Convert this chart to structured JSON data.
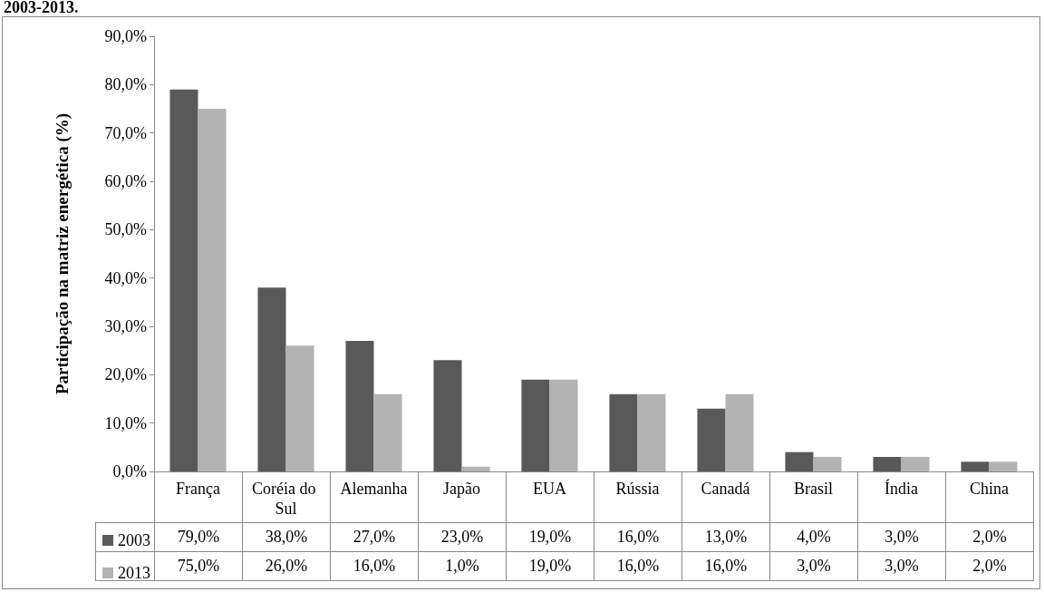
{
  "chart_data": {
    "type": "bar",
    "ylabel": "Participação na matriz energética (%)",
    "annotations": [
      "2003-2013."
    ],
    "categories": [
      "França",
      "Coréia do Sul",
      "Alemanha",
      "Japão",
      "EUA",
      "Rússia",
      "Canadá",
      "Brasil",
      "Índia",
      "China"
    ],
    "series": [
      {
        "name": "2003",
        "color": "#595959",
        "values": [
          79,
          38,
          27,
          23,
          19,
          16,
          13,
          4,
          3,
          2
        ],
        "value_labels": [
          "79,0%",
          "38,0%",
          "27,0%",
          "23,0%",
          "19,0%",
          "16,0%",
          "13,0%",
          "4,0%",
          "3,0%",
          "2,0%"
        ]
      },
      {
        "name": "2013",
        "color": "#b3b3b3",
        "values": [
          75,
          26,
          16,
          1,
          19,
          16,
          16,
          3,
          3,
          2
        ],
        "value_labels": [
          "75,0%",
          "26,0%",
          "16,0%",
          "1,0%",
          "19,0%",
          "16,0%",
          "16,0%",
          "3,0%",
          "3,0%",
          "2,0%"
        ]
      }
    ],
    "ylim": [
      0,
      90
    ],
    "yticks": [
      {
        "value": 0,
        "label": "0,0%"
      },
      {
        "value": 10,
        "label": "10,0%"
      },
      {
        "value": 20,
        "label": "20,0%"
      },
      {
        "value": 30,
        "label": "30,0%"
      },
      {
        "value": 40,
        "label": "40,0%"
      },
      {
        "value": 50,
        "label": "50,0%"
      },
      {
        "value": 60,
        "label": "60,0%"
      },
      {
        "value": 70,
        "label": "70,0%"
      },
      {
        "value": 80,
        "label": "80,0%"
      },
      {
        "value": 90,
        "label": "90,0%"
      }
    ],
    "grid": false,
    "legend": "bottom left"
  }
}
